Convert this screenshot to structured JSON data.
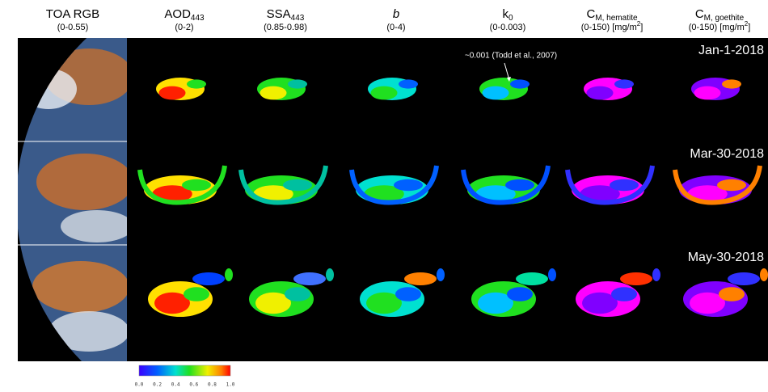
{
  "columns": [
    {
      "name": "TOA RGB",
      "range": "(0-0.55)"
    },
    {
      "name": "AOD",
      "subscript": "443",
      "range": "(0-2)"
    },
    {
      "name": "SSA",
      "subscript": "443",
      "range": "(0.85-0.98)"
    },
    {
      "name": "b",
      "range": "(0-4)"
    },
    {
      "name": "k",
      "subscript": "0",
      "range": "(0-0.003)"
    },
    {
      "name": "C",
      "subscript": "M, hematite",
      "range": "(0-150) [mg/m",
      "range_sup": "2",
      "range_tail": "]"
    },
    {
      "name": "C",
      "subscript": "M, goethite",
      "range": "(0-150) [mg/m",
      "range_sup": "2",
      "range_tail": "]"
    }
  ],
  "dates": [
    "Jan-1-2018",
    "Mar-30-2018",
    "May-30-2018"
  ],
  "annotation": "~0.001 (Todd et al., 2007)",
  "colorbar": {
    "ticks": [
      "0.0",
      "0.2",
      "0.4",
      "0.6",
      "0.8",
      "1.0"
    ]
  }
}
